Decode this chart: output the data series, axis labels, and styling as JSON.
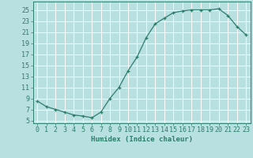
{
  "x": [
    0,
    1,
    2,
    3,
    4,
    5,
    6,
    7,
    8,
    9,
    10,
    11,
    12,
    13,
    14,
    15,
    16,
    17,
    18,
    19,
    20,
    21,
    22,
    23
  ],
  "y": [
    8.5,
    7.5,
    7.0,
    6.5,
    6.0,
    5.8,
    5.5,
    6.5,
    9.0,
    11.0,
    14.0,
    16.5,
    20.0,
    22.5,
    23.5,
    24.5,
    24.8,
    25.0,
    25.0,
    25.0,
    25.2,
    24.0,
    22.0,
    20.5
  ],
  "xlabel": "Humidex (Indice chaleur)",
  "xlim": [
    -0.5,
    23.5
  ],
  "ylim": [
    4.5,
    26.5
  ],
  "yticks": [
    5,
    7,
    9,
    11,
    13,
    15,
    17,
    19,
    21,
    23,
    25
  ],
  "xticks": [
    0,
    1,
    2,
    3,
    4,
    5,
    6,
    7,
    8,
    9,
    10,
    11,
    12,
    13,
    14,
    15,
    16,
    17,
    18,
    19,
    20,
    21,
    22,
    23
  ],
  "line_color": "#2e7d6b",
  "marker": "+",
  "bg_color": "#b8e0e0",
  "grid_color": "#ffffff",
  "spine_color": "#2e7d6b",
  "label_color": "#2e7d6b",
  "xlabel_fontsize": 6.5,
  "tick_fontsize": 6.0,
  "markersize": 3.5,
  "linewidth": 0.9
}
